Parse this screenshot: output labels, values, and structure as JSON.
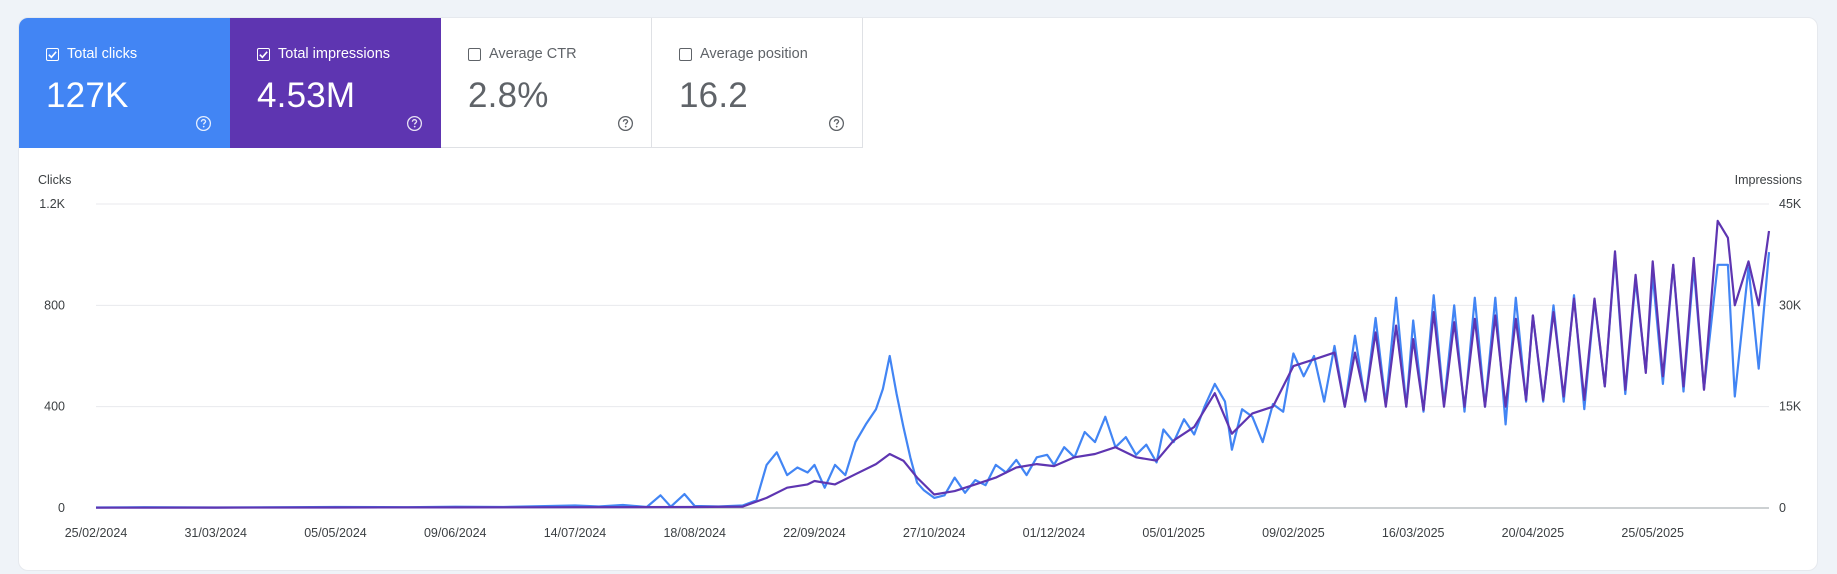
{
  "metrics": [
    {
      "label": "Total clicks",
      "value": "127K",
      "checked": true
    },
    {
      "label": "Total impressions",
      "value": "4.53M",
      "checked": true
    },
    {
      "label": "Average CTR",
      "value": "2.8%",
      "checked": false
    },
    {
      "label": "Average position",
      "value": "16.2",
      "checked": false
    }
  ],
  "colors": {
    "clicks": "#4285f4",
    "impressions": "#5e35b1"
  },
  "icons": {
    "help": "help-circle-icon",
    "checkbox": "checkbox-icon"
  },
  "chart_data": {
    "type": "line",
    "ylabel_left": "Clicks",
    "ylabel_right": "Impressions",
    "y_left_ticks": [
      "0",
      "400",
      "800",
      "1.2K"
    ],
    "y_right_ticks": [
      "0",
      "15K",
      "30K",
      "45K"
    ],
    "ylim_left": [
      0,
      1200
    ],
    "ylim_right": [
      0,
      45000
    ],
    "x_ticks": [
      "25/02/2024",
      "31/03/2024",
      "05/05/2024",
      "09/06/2024",
      "14/07/2024",
      "18/08/2024",
      "22/09/2024",
      "27/10/2024",
      "01/12/2024",
      "05/01/2025",
      "09/02/2025",
      "16/03/2025",
      "20/04/2025",
      "25/05/2025"
    ],
    "x_range": [
      "25/02/2024",
      "28/06/2025"
    ],
    "grid": true,
    "series": [
      {
        "name": "Clicks",
        "axis": "left",
        "points": [
          [
            "25/02/2024",
            2
          ],
          [
            "10/03/2024",
            3
          ],
          [
            "31/03/2024",
            2
          ],
          [
            "21/04/2024",
            3
          ],
          [
            "05/05/2024",
            4
          ],
          [
            "26/05/2024",
            3
          ],
          [
            "09/06/2024",
            5
          ],
          [
            "23/06/2024",
            4
          ],
          [
            "07/07/2024",
            8
          ],
          [
            "14/07/2024",
            10
          ],
          [
            "21/07/2024",
            6
          ],
          [
            "28/07/2024",
            12
          ],
          [
            "04/08/2024",
            4
          ],
          [
            "08/08/2024",
            50
          ],
          [
            "11/08/2024",
            5
          ],
          [
            "15/08/2024",
            55
          ],
          [
            "18/08/2024",
            8
          ],
          [
            "25/08/2024",
            6
          ],
          [
            "01/09/2024",
            10
          ],
          [
            "05/09/2024",
            30
          ],
          [
            "08/09/2024",
            170
          ],
          [
            "11/09/2024",
            220
          ],
          [
            "14/09/2024",
            130
          ],
          [
            "17/09/2024",
            160
          ],
          [
            "20/09/2024",
            140
          ],
          [
            "22/09/2024",
            170
          ],
          [
            "25/09/2024",
            80
          ],
          [
            "28/09/2024",
            170
          ],
          [
            "01/10/2024",
            130
          ],
          [
            "04/10/2024",
            260
          ],
          [
            "07/10/2024",
            330
          ],
          [
            "10/10/2024",
            390
          ],
          [
            "12/10/2024",
            470
          ],
          [
            "14/10/2024",
            600
          ],
          [
            "16/10/2024",
            450
          ],
          [
            "18/10/2024",
            320
          ],
          [
            "20/10/2024",
            200
          ],
          [
            "22/10/2024",
            100
          ],
          [
            "24/10/2024",
            70
          ],
          [
            "27/10/2024",
            40
          ],
          [
            "30/10/2024",
            50
          ],
          [
            "02/11/2024",
            120
          ],
          [
            "05/11/2024",
            60
          ],
          [
            "08/11/2024",
            110
          ],
          [
            "11/11/2024",
            90
          ],
          [
            "14/11/2024",
            170
          ],
          [
            "17/11/2024",
            140
          ],
          [
            "20/11/2024",
            190
          ],
          [
            "23/11/2024",
            130
          ],
          [
            "26/11/2024",
            200
          ],
          [
            "29/11/2024",
            210
          ],
          [
            "01/12/2024",
            170
          ],
          [
            "04/12/2024",
            240
          ],
          [
            "07/12/2024",
            200
          ],
          [
            "10/12/2024",
            300
          ],
          [
            "13/12/2024",
            260
          ],
          [
            "16/12/2024",
            360
          ],
          [
            "19/12/2024",
            240
          ],
          [
            "22/12/2024",
            280
          ],
          [
            "25/12/2024",
            210
          ],
          [
            "28/12/2024",
            250
          ],
          [
            "31/12/2024",
            180
          ],
          [
            "02/01/2025",
            310
          ],
          [
            "05/01/2025",
            260
          ],
          [
            "08/01/2025",
            350
          ],
          [
            "11/01/2025",
            290
          ],
          [
            "14/01/2025",
            400
          ],
          [
            "17/01/2025",
            490
          ],
          [
            "20/01/2025",
            420
          ],
          [
            "22/01/2025",
            230
          ],
          [
            "25/01/2025",
            390
          ],
          [
            "28/01/2025",
            360
          ],
          [
            "31/01/2025",
            260
          ],
          [
            "03/02/2025",
            410
          ],
          [
            "06/02/2025",
            380
          ],
          [
            "09/02/2025",
            610
          ],
          [
            "12/02/2025",
            520
          ],
          [
            "15/02/2025",
            600
          ],
          [
            "18/02/2025",
            420
          ],
          [
            "21/02/2025",
            640
          ],
          [
            "24/02/2025",
            400
          ],
          [
            "27/02/2025",
            680
          ],
          [
            "02/03/2025",
            420
          ],
          [
            "05/03/2025",
            750
          ],
          [
            "08/03/2025",
            410
          ],
          [
            "11/03/2025",
            830
          ],
          [
            "14/03/2025",
            400
          ],
          [
            "16/03/2025",
            740
          ],
          [
            "19/03/2025",
            380
          ],
          [
            "22/03/2025",
            840
          ],
          [
            "25/03/2025",
            410
          ],
          [
            "28/03/2025",
            800
          ],
          [
            "31/03/2025",
            380
          ],
          [
            "03/04/2025",
            830
          ],
          [
            "06/04/2025",
            400
          ],
          [
            "09/04/2025",
            830
          ],
          [
            "12/04/2025",
            330
          ],
          [
            "15/04/2025",
            830
          ],
          [
            "18/04/2025",
            420
          ],
          [
            "20/04/2025",
            760
          ],
          [
            "23/04/2025",
            420
          ],
          [
            "26/04/2025",
            800
          ],
          [
            "29/04/2025",
            420
          ],
          [
            "02/05/2025",
            840
          ],
          [
            "05/05/2025",
            390
          ],
          [
            "08/05/2025",
            820
          ],
          [
            "11/05/2025",
            480
          ],
          [
            "14/05/2025",
            1000
          ],
          [
            "17/05/2025",
            450
          ],
          [
            "20/05/2025",
            900
          ],
          [
            "23/05/2025",
            540
          ],
          [
            "25/05/2025",
            920
          ],
          [
            "28/05/2025",
            490
          ],
          [
            "31/05/2025",
            960
          ],
          [
            "03/06/2025",
            460
          ],
          [
            "06/06/2025",
            950
          ],
          [
            "09/06/2025",
            470
          ],
          [
            "13/06/2025",
            960
          ],
          [
            "16/06/2025",
            960
          ],
          [
            "18/06/2025",
            440
          ],
          [
            "22/06/2025",
            950
          ],
          [
            "25/06/2025",
            550
          ],
          [
            "28/06/2025",
            1010
          ]
        ]
      },
      {
        "name": "Impressions",
        "axis": "right",
        "points": [
          [
            "25/02/2024",
            50
          ],
          [
            "31/03/2024",
            60
          ],
          [
            "05/05/2024",
            80
          ],
          [
            "09/06/2024",
            90
          ],
          [
            "14/07/2024",
            120
          ],
          [
            "18/08/2024",
            150
          ],
          [
            "01/09/2024",
            200
          ],
          [
            "08/09/2024",
            1500
          ],
          [
            "14/09/2024",
            3000
          ],
          [
            "20/09/2024",
            3500
          ],
          [
            "22/09/2024",
            4000
          ],
          [
            "28/09/2024",
            3500
          ],
          [
            "04/10/2024",
            5000
          ],
          [
            "10/10/2024",
            6500
          ],
          [
            "14/10/2024",
            8000
          ],
          [
            "18/10/2024",
            7000
          ],
          [
            "22/10/2024",
            4500
          ],
          [
            "27/10/2024",
            2000
          ],
          [
            "02/11/2024",
            2500
          ],
          [
            "08/11/2024",
            3500
          ],
          [
            "14/11/2024",
            4500
          ],
          [
            "20/11/2024",
            6000
          ],
          [
            "26/11/2024",
            6500
          ],
          [
            "01/12/2024",
            6200
          ],
          [
            "07/12/2024",
            7500
          ],
          [
            "13/12/2024",
            8000
          ],
          [
            "19/12/2024",
            9000
          ],
          [
            "25/12/2024",
            7500
          ],
          [
            "31/12/2024",
            7000
          ],
          [
            "05/01/2025",
            10000
          ],
          [
            "11/01/2025",
            12000
          ],
          [
            "17/01/2025",
            17000
          ],
          [
            "22/01/2025",
            11000
          ],
          [
            "28/01/2025",
            14000
          ],
          [
            "03/02/2025",
            15000
          ],
          [
            "09/02/2025",
            21000
          ],
          [
            "15/02/2025",
            22000
          ],
          [
            "21/02/2025",
            23000
          ],
          [
            "24/02/2025",
            15000
          ],
          [
            "27/02/2025",
            23000
          ],
          [
            "02/03/2025",
            16000
          ],
          [
            "05/03/2025",
            26000
          ],
          [
            "08/03/2025",
            15000
          ],
          [
            "11/03/2025",
            27000
          ],
          [
            "14/03/2025",
            15000
          ],
          [
            "16/03/2025",
            25000
          ],
          [
            "19/03/2025",
            14500
          ],
          [
            "22/03/2025",
            29000
          ],
          [
            "25/03/2025",
            15000
          ],
          [
            "28/03/2025",
            27500
          ],
          [
            "31/03/2025",
            15000
          ],
          [
            "03/04/2025",
            28000
          ],
          [
            "06/04/2025",
            15000
          ],
          [
            "09/04/2025",
            28500
          ],
          [
            "12/04/2025",
            15000
          ],
          [
            "15/04/2025",
            28000
          ],
          [
            "18/04/2025",
            16000
          ],
          [
            "20/04/2025",
            28500
          ],
          [
            "23/04/2025",
            16000
          ],
          [
            "26/04/2025",
            29000
          ],
          [
            "29/04/2025",
            16500
          ],
          [
            "02/05/2025",
            31000
          ],
          [
            "05/05/2025",
            16000
          ],
          [
            "08/05/2025",
            31000
          ],
          [
            "11/05/2025",
            18000
          ],
          [
            "14/05/2025",
            38000
          ],
          [
            "17/05/2025",
            17500
          ],
          [
            "20/05/2025",
            34500
          ],
          [
            "23/05/2025",
            20000
          ],
          [
            "25/05/2025",
            36500
          ],
          [
            "28/05/2025",
            19500
          ],
          [
            "31/05/2025",
            36000
          ],
          [
            "03/06/2025",
            18000
          ],
          [
            "06/06/2025",
            37000
          ],
          [
            "09/06/2025",
            17500
          ],
          [
            "13/06/2025",
            42500
          ],
          [
            "16/06/2025",
            40000
          ],
          [
            "18/06/2025",
            30000
          ],
          [
            "22/06/2025",
            36500
          ],
          [
            "25/06/2025",
            30000
          ],
          [
            "28/06/2025",
            41000
          ]
        ]
      }
    ]
  }
}
